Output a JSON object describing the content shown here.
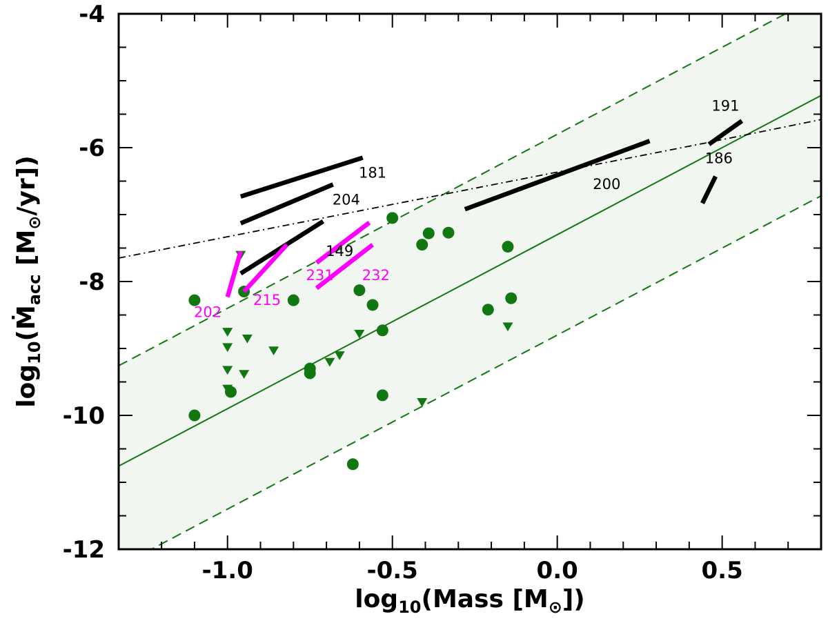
{
  "chart_data": {
    "type": "scatter",
    "xlabel": "log10(Mass [M⊙])",
    "ylabel": "log10(Ṁacc [M⊙/yr])",
    "xlim": [
      -1.33,
      0.8
    ],
    "ylim": [
      -12,
      -4
    ],
    "x_ticks": [
      -1.0,
      -0.5,
      0.0,
      0.5
    ],
    "x_tick_labels": [
      "-1.0",
      "-0.5",
      "0.0",
      "0.5"
    ],
    "y_ticks": [
      -12,
      -10,
      -8,
      -6,
      -4
    ],
    "y_tick_labels": [
      "-12",
      "-10",
      "-8",
      "-6",
      "-4"
    ],
    "grid": false,
    "colors": {
      "points": "#117711",
      "band": "#f1f6f0",
      "magenta": "#ff00ff",
      "black": "#000000"
    },
    "relation": {
      "slope": 2.6,
      "intercept": -7.3,
      "band_halfwidth": 1.5
    },
    "dashdot_line": [
      [
        -1.33,
        -7.65
      ],
      [
        0.45,
        -5.93
      ],
      [
        0.8,
        -5.58
      ]
    ],
    "circles": [
      [
        -1.1,
        -8.28
      ],
      [
        -1.1,
        -10.0
      ],
      [
        -0.99,
        -9.65
      ],
      [
        -0.95,
        -8.15
      ],
      [
        -0.8,
        -8.28
      ],
      [
        -0.75,
        -9.3
      ],
      [
        -0.75,
        -9.37
      ],
      [
        -0.6,
        -8.13
      ],
      [
        -0.56,
        -8.35
      ],
      [
        -0.53,
        -8.73
      ],
      [
        -0.53,
        -9.7
      ],
      [
        -0.5,
        -7.05
      ],
      [
        -0.41,
        -7.45
      ],
      [
        -0.39,
        -7.28
      ],
      [
        -0.33,
        -7.27
      ],
      [
        -0.62,
        -10.73
      ],
      [
        -0.21,
        -8.42
      ],
      [
        -0.15,
        -7.48
      ],
      [
        -0.14,
        -8.25
      ]
    ],
    "triangles": [
      [
        -0.96,
        -7.6
      ],
      [
        -1.0,
        -8.75
      ],
      [
        -1.0,
        -8.98
      ],
      [
        -0.94,
        -8.85
      ],
      [
        -1.0,
        -9.32
      ],
      [
        -0.95,
        -9.38
      ],
      [
        -1.0,
        -9.6
      ],
      [
        -0.86,
        -9.03
      ],
      [
        -0.69,
        -9.2
      ],
      [
        -0.66,
        -9.1
      ],
      [
        -0.6,
        -8.78
      ],
      [
        -0.41,
        -9.8
      ],
      [
        -0.15,
        -8.67
      ]
    ],
    "segments": [
      {
        "label": "181",
        "color": "black",
        "x": [
          -0.96,
          -0.59
        ],
        "y": [
          -6.73,
          -6.15
        ],
        "label_at": [
          -0.56,
          -6.45
        ]
      },
      {
        "label": "204",
        "color": "black",
        "x": [
          -0.96,
          -0.68
        ],
        "y": [
          -7.13,
          -6.55
        ],
        "label_at": [
          -0.64,
          -6.85
        ]
      },
      {
        "label": "149",
        "color": "black",
        "x": [
          -0.96,
          -0.71
        ],
        "y": [
          -7.88,
          -7.1
        ],
        "label_at": [
          -0.66,
          -7.62
        ]
      },
      {
        "label": "200",
        "color": "black",
        "x": [
          -0.28,
          0.28
        ],
        "y": [
          -6.92,
          -5.9
        ],
        "label_at": [
          0.15,
          -6.62
        ]
      },
      {
        "label": "191",
        "color": "black",
        "x": [
          0.46,
          0.56
        ],
        "y": [
          -5.95,
          -5.6
        ],
        "label_at": [
          0.51,
          -5.45
        ]
      },
      {
        "label": "186",
        "color": "black",
        "x": [
          0.44,
          0.48
        ],
        "y": [
          -6.83,
          -6.43
        ],
        "label_at": [
          0.49,
          -6.23
        ]
      },
      {
        "label": "202",
        "color": "magenta",
        "x": [
          -1.0,
          -0.96
        ],
        "y": [
          -8.23,
          -7.55
        ],
        "label_at": [
          -1.06,
          -8.53
        ]
      },
      {
        "label": "215",
        "color": "magenta",
        "x": [
          -0.95,
          -0.82
        ],
        "y": [
          -8.15,
          -7.45
        ],
        "label_at": [
          -0.88,
          -8.35
        ]
      },
      {
        "label": "231",
        "color": "magenta",
        "x": [
          -0.73,
          -0.57
        ],
        "y": [
          -7.72,
          -7.12
        ],
        "label_at": [
          -0.72,
          -7.98
        ]
      },
      {
        "label": "232",
        "color": "magenta",
        "x": [
          -0.73,
          -0.56
        ],
        "y": [
          -8.1,
          -7.45
        ],
        "label_at": [
          -0.55,
          -7.98
        ]
      }
    ]
  }
}
